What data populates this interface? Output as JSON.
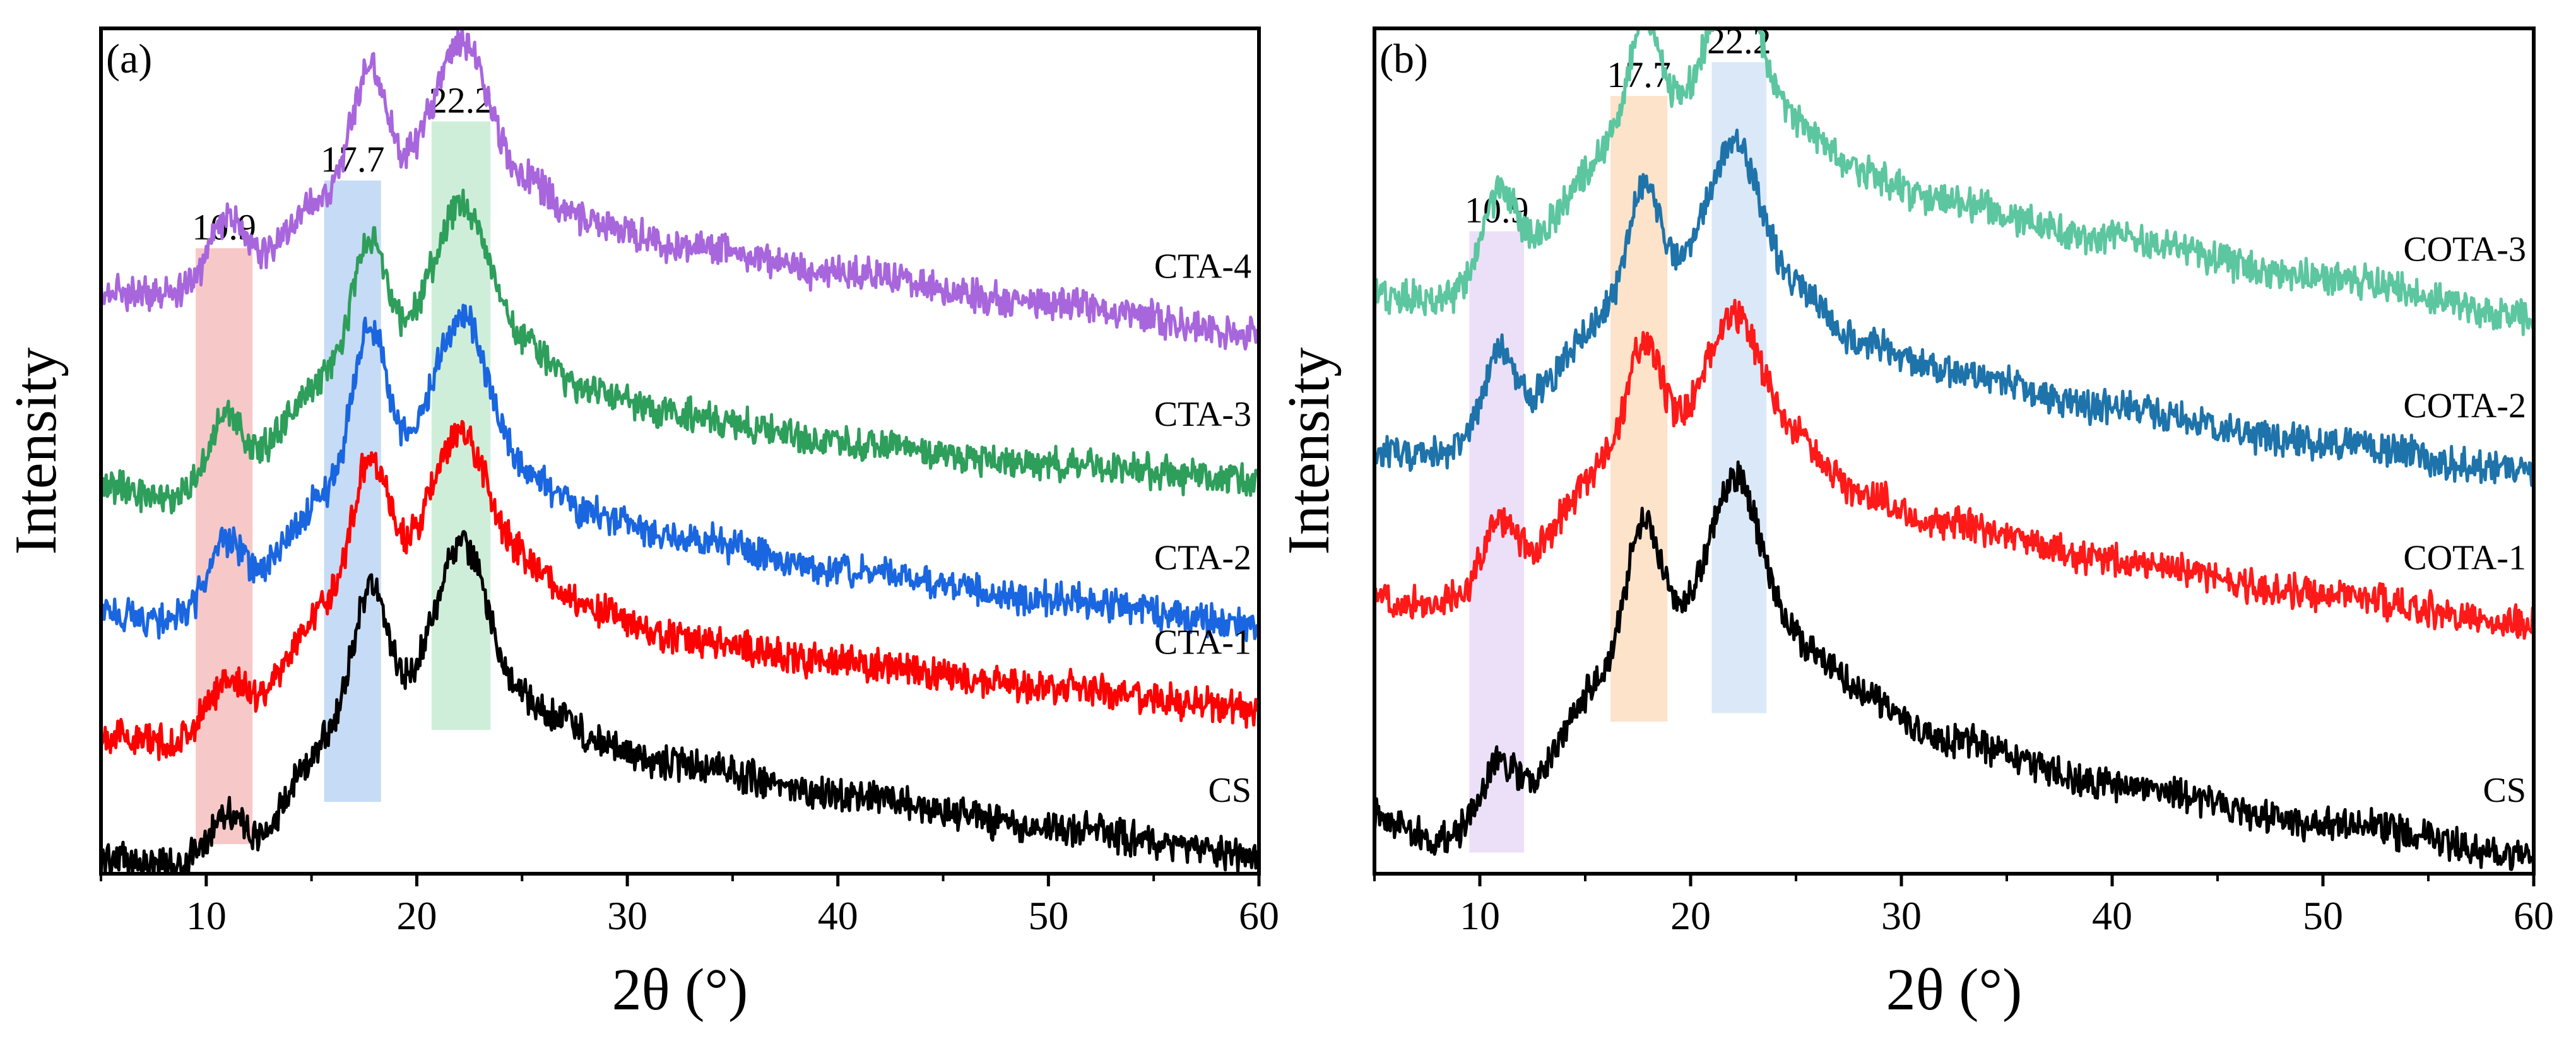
{
  "chart_data": [
    {
      "type": "line",
      "panel": "(a)",
      "xlabel": "2θ (°)",
      "ylabel": "Intensity",
      "xlim": [
        5,
        60
      ],
      "ylim": [
        0,
        10
      ],
      "xticks": [
        10,
        20,
        30,
        40,
        50,
        60
      ],
      "xtick_labels": [
        "10",
        "20",
        "30",
        "40",
        "50",
        "60"
      ],
      "yticks_shown": false,
      "peak_markers": [
        {
          "position": 10.9,
          "label": "10.9",
          "band": [
            9.5,
            12.2
          ],
          "color": "#f4b6b6"
        },
        {
          "position": 17.7,
          "label": "17.7",
          "band": [
            15.6,
            18.3
          ],
          "color": "#b3cff2"
        },
        {
          "position": 22.2,
          "label": "22.2",
          "band": [
            20.7,
            23.5
          ],
          "color": "#bfe8cc"
        }
      ],
      "series": [
        {
          "name": "CS",
          "color": "#000000",
          "peaks": [
            {
              "x": 10.9,
              "h": 0.45,
              "w": 0.7
            },
            {
              "x": 17.7,
              "h": 1.5,
              "w": 0.8
            },
            {
              "x": 22.2,
              "h": 1.75,
              "w": 1.2
            },
            {
              "x": 27.2,
              "h": 0.2,
              "w": 0.6
            }
          ],
          "baseline": [
            [
              5,
              0.2
            ],
            [
              8,
              0.1
            ],
            [
              12,
              0.35
            ],
            [
              16,
              1.6
            ],
            [
              19,
              2.1
            ],
            [
              21,
              2.2
            ],
            [
              25,
              2.0
            ],
            [
              28,
              1.55
            ],
            [
              32,
              1.3
            ],
            [
              40,
              0.95
            ],
            [
              50,
              0.55
            ],
            [
              60,
              0.2
            ]
          ]
        },
        {
          "name": "CTA-1",
          "color": "#ff0000",
          "peaks": [
            {
              "x": 10.9,
              "h": 0.35,
              "w": 0.7
            },
            {
              "x": 17.7,
              "h": 1.4,
              "w": 0.8
            },
            {
              "x": 22.2,
              "h": 1.3,
              "w": 1.2
            }
          ],
          "baseline": [
            [
              5,
              1.65
            ],
            [
              8,
              1.55
            ],
            [
              12,
              2.05
            ],
            [
              16,
              3.2
            ],
            [
              19,
              3.75
            ],
            [
              21,
              3.95
            ],
            [
              25,
              3.7
            ],
            [
              28,
              3.15
            ],
            [
              32,
              2.8
            ],
            [
              40,
              2.5
            ],
            [
              50,
              2.2
            ],
            [
              60,
              1.95
            ]
          ]
        },
        {
          "name": "CTA-2",
          "color": "#1a66e0",
          "peaks": [
            {
              "x": 10.9,
              "h": 0.55,
              "w": 0.7
            },
            {
              "x": 17.7,
              "h": 1.7,
              "w": 0.8
            },
            {
              "x": 22.2,
              "h": 1.6,
              "w": 1.2
            }
          ],
          "baseline": [
            [
              5,
              3.1
            ],
            [
              8,
              3.0
            ],
            [
              12,
              3.5
            ],
            [
              16,
              4.5
            ],
            [
              19,
              4.95
            ],
            [
              21,
              5.05
            ],
            [
              25,
              4.75
            ],
            [
              28,
              4.3
            ],
            [
              32,
              4.0
            ],
            [
              40,
              3.6
            ],
            [
              50,
              3.25
            ],
            [
              60,
              2.95
            ]
          ]
        },
        {
          "name": "CTA-3",
          "color": "#2e9e5b",
          "peaks": [
            {
              "x": 10.9,
              "h": 0.6,
              "w": 0.7
            },
            {
              "x": 17.7,
              "h": 1.35,
              "w": 0.8
            },
            {
              "x": 22.2,
              "h": 1.5,
              "w": 1.2
            }
          ],
          "baseline": [
            [
              5,
              4.6
            ],
            [
              8,
              4.45
            ],
            [
              12,
              4.95
            ],
            [
              16,
              5.9
            ],
            [
              19,
              6.3
            ],
            [
              21,
              6.5
            ],
            [
              25,
              6.25
            ],
            [
              28,
              5.75
            ],
            [
              32,
              5.45
            ],
            [
              40,
              5.1
            ],
            [
              50,
              4.85
            ],
            [
              60,
              4.65
            ]
          ]
        },
        {
          "name": "CTA-4",
          "color": "#a866dd",
          "peaks": [
            {
              "x": 10.9,
              "h": 0.55,
              "w": 0.7
            },
            {
              "x": 17.7,
              "h": 1.35,
              "w": 0.8
            },
            {
              "x": 22.2,
              "h": 1.45,
              "w": 1.2
            }
          ],
          "baseline": [
            [
              5,
              6.9
            ],
            [
              8,
              6.85
            ],
            [
              12,
              7.3
            ],
            [
              16,
              8.0
            ],
            [
              19,
              8.3
            ],
            [
              21,
              8.45
            ],
            [
              25,
              8.2
            ],
            [
              28,
              7.75
            ],
            [
              32,
              7.45
            ],
            [
              40,
              7.1
            ],
            [
              50,
              6.75
            ],
            [
              60,
              6.4
            ]
          ]
        }
      ]
    },
    {
      "type": "line",
      "panel": "(b)",
      "xlabel": "2θ (°)",
      "ylabel": "Intensity",
      "xlim": [
        5,
        60
      ],
      "ylim": [
        0,
        10
      ],
      "xticks": [
        10,
        20,
        30,
        40,
        50,
        60
      ],
      "xtick_labels": [
        "10",
        "20",
        "30",
        "40",
        "50",
        "60"
      ],
      "yticks_shown": false,
      "peak_markers": [
        {
          "position": 10.9,
          "label": "10.9",
          "band": [
            9.5,
            12.1
          ],
          "color": "#e6d6f7"
        },
        {
          "position": 17.7,
          "label": "17.7",
          "band": [
            16.2,
            18.9
          ],
          "color": "#fbd9b8"
        },
        {
          "position": 22.2,
          "label": "22.2",
          "band": [
            21.0,
            23.6
          ],
          "color": "#cfe0f4"
        }
      ],
      "series": [
        {
          "name": "CS",
          "color": "#000000",
          "peaks": [
            {
              "x": 10.9,
              "h": 0.45,
              "w": 0.7
            },
            {
              "x": 17.7,
              "h": 1.5,
              "w": 0.8
            },
            {
              "x": 22.2,
              "h": 1.75,
              "w": 1.2
            },
            {
              "x": 27.2,
              "h": 0.2,
              "w": 0.6
            }
          ],
          "baseline": [
            [
              5,
              0.7
            ],
            [
              8,
              0.4
            ],
            [
              12,
              1.0
            ],
            [
              16,
              2.3
            ],
            [
              19,
              2.9
            ],
            [
              21,
              3.0
            ],
            [
              25,
              2.7
            ],
            [
              28,
              2.05
            ],
            [
              32,
              1.6
            ],
            [
              40,
              1.05
            ],
            [
              50,
              0.6
            ],
            [
              60,
              0.2
            ]
          ]
        },
        {
          "name": "COTA-1",
          "color": "#ff1a1a",
          "peaks": [
            {
              "x": 10.9,
              "h": 0.55,
              "w": 0.7
            },
            {
              "x": 17.7,
              "h": 1.2,
              "w": 0.8
            },
            {
              "x": 22.2,
              "h": 1.2,
              "w": 1.2
            }
          ],
          "baseline": [
            [
              5,
              3.25
            ],
            [
              8,
              3.2
            ],
            [
              12,
              3.75
            ],
            [
              16,
              4.8
            ],
            [
              19,
              5.25
            ],
            [
              21,
              5.45
            ],
            [
              25,
              5.15
            ],
            [
              28,
              4.5
            ],
            [
              32,
              4.15
            ],
            [
              40,
              3.7
            ],
            [
              50,
              3.3
            ],
            [
              60,
              2.95
            ]
          ]
        },
        {
          "name": "COTA-2",
          "color": "#1e73aa",
          "peaks": [
            {
              "x": 10.9,
              "h": 0.75,
              "w": 0.7
            },
            {
              "x": 17.7,
              "h": 1.3,
              "w": 0.8
            },
            {
              "x": 22.2,
              "h": 1.45,
              "w": 1.2
            }
          ],
          "baseline": [
            [
              5,
              5.0
            ],
            [
              8,
              4.95
            ],
            [
              12,
              5.55
            ],
            [
              16,
              6.55
            ],
            [
              19,
              7.0
            ],
            [
              21,
              7.25
            ],
            [
              25,
              6.9
            ],
            [
              28,
              6.3
            ],
            [
              32,
              5.95
            ],
            [
              40,
              5.5
            ],
            [
              50,
              5.1
            ],
            [
              60,
              4.75
            ]
          ]
        },
        {
          "name": "COTA-3",
          "color": "#5cc6a0",
          "peaks": [
            {
              "x": 10.9,
              "h": 0.75,
              "w": 0.7
            },
            {
              "x": 17.7,
              "h": 1.35,
              "w": 0.8
            },
            {
              "x": 22.2,
              "h": 1.45,
              "w": 1.2
            }
          ],
          "baseline": [
            [
              5,
              6.85
            ],
            [
              8,
              6.8
            ],
            [
              12,
              7.45
            ],
            [
              16,
              8.45
            ],
            [
              19,
              8.95
            ],
            [
              21,
              9.15
            ],
            [
              25,
              8.85
            ],
            [
              28,
              8.3
            ],
            [
              32,
              7.95
            ],
            [
              40,
              7.5
            ],
            [
              50,
              7.05
            ],
            [
              60,
              6.6
            ]
          ]
        }
      ]
    }
  ]
}
